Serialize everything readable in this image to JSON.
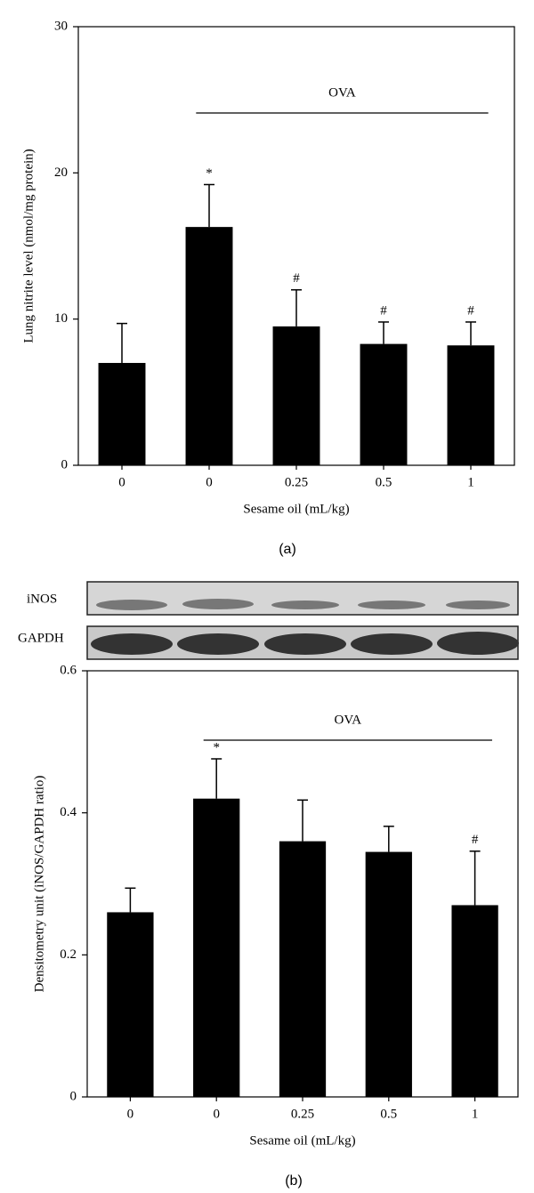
{
  "chart_data": [
    {
      "type": "bar",
      "caption": "(a)",
      "xlabel": "Sesame oil (mL/kg)",
      "ylabel": "Lung nitrite level (nmol/mg protein)",
      "categories": [
        "0",
        "0",
        "0.25",
        "0.5",
        "1"
      ],
      "values": [
        7.0,
        16.3,
        9.5,
        8.3,
        8.2
      ],
      "errors": [
        2.7,
        2.9,
        2.5,
        1.5,
        1.6
      ],
      "value_annotations": [
        null,
        "*",
        "#",
        "#",
        "#"
      ],
      "group_label": "OVA",
      "color": "#000000",
      "ylim": [
        0,
        30
      ],
      "yticks": [
        0,
        10,
        20,
        30
      ]
    },
    {
      "type": "bar",
      "caption": "(b)",
      "xlabel": "Sesame oil (mL/kg)",
      "ylabel": "Densitometry unit (iNOS/GAPDH ratio)",
      "blot_labels": [
        "iNOS",
        "GAPDH"
      ],
      "categories": [
        "0",
        "0",
        "0.25",
        "0.5",
        "1"
      ],
      "values": [
        0.26,
        0.42,
        0.36,
        0.345,
        0.27
      ],
      "errors": [
        0.034,
        0.056,
        0.058,
        0.036,
        0.076
      ],
      "value_annotations": [
        null,
        "*",
        null,
        null,
        "#"
      ],
      "group_label": "OVA",
      "color": "#000000",
      "ylim": [
        0,
        0.6
      ],
      "yticks": [
        0,
        0.2,
        0.4,
        0.6
      ]
    }
  ]
}
